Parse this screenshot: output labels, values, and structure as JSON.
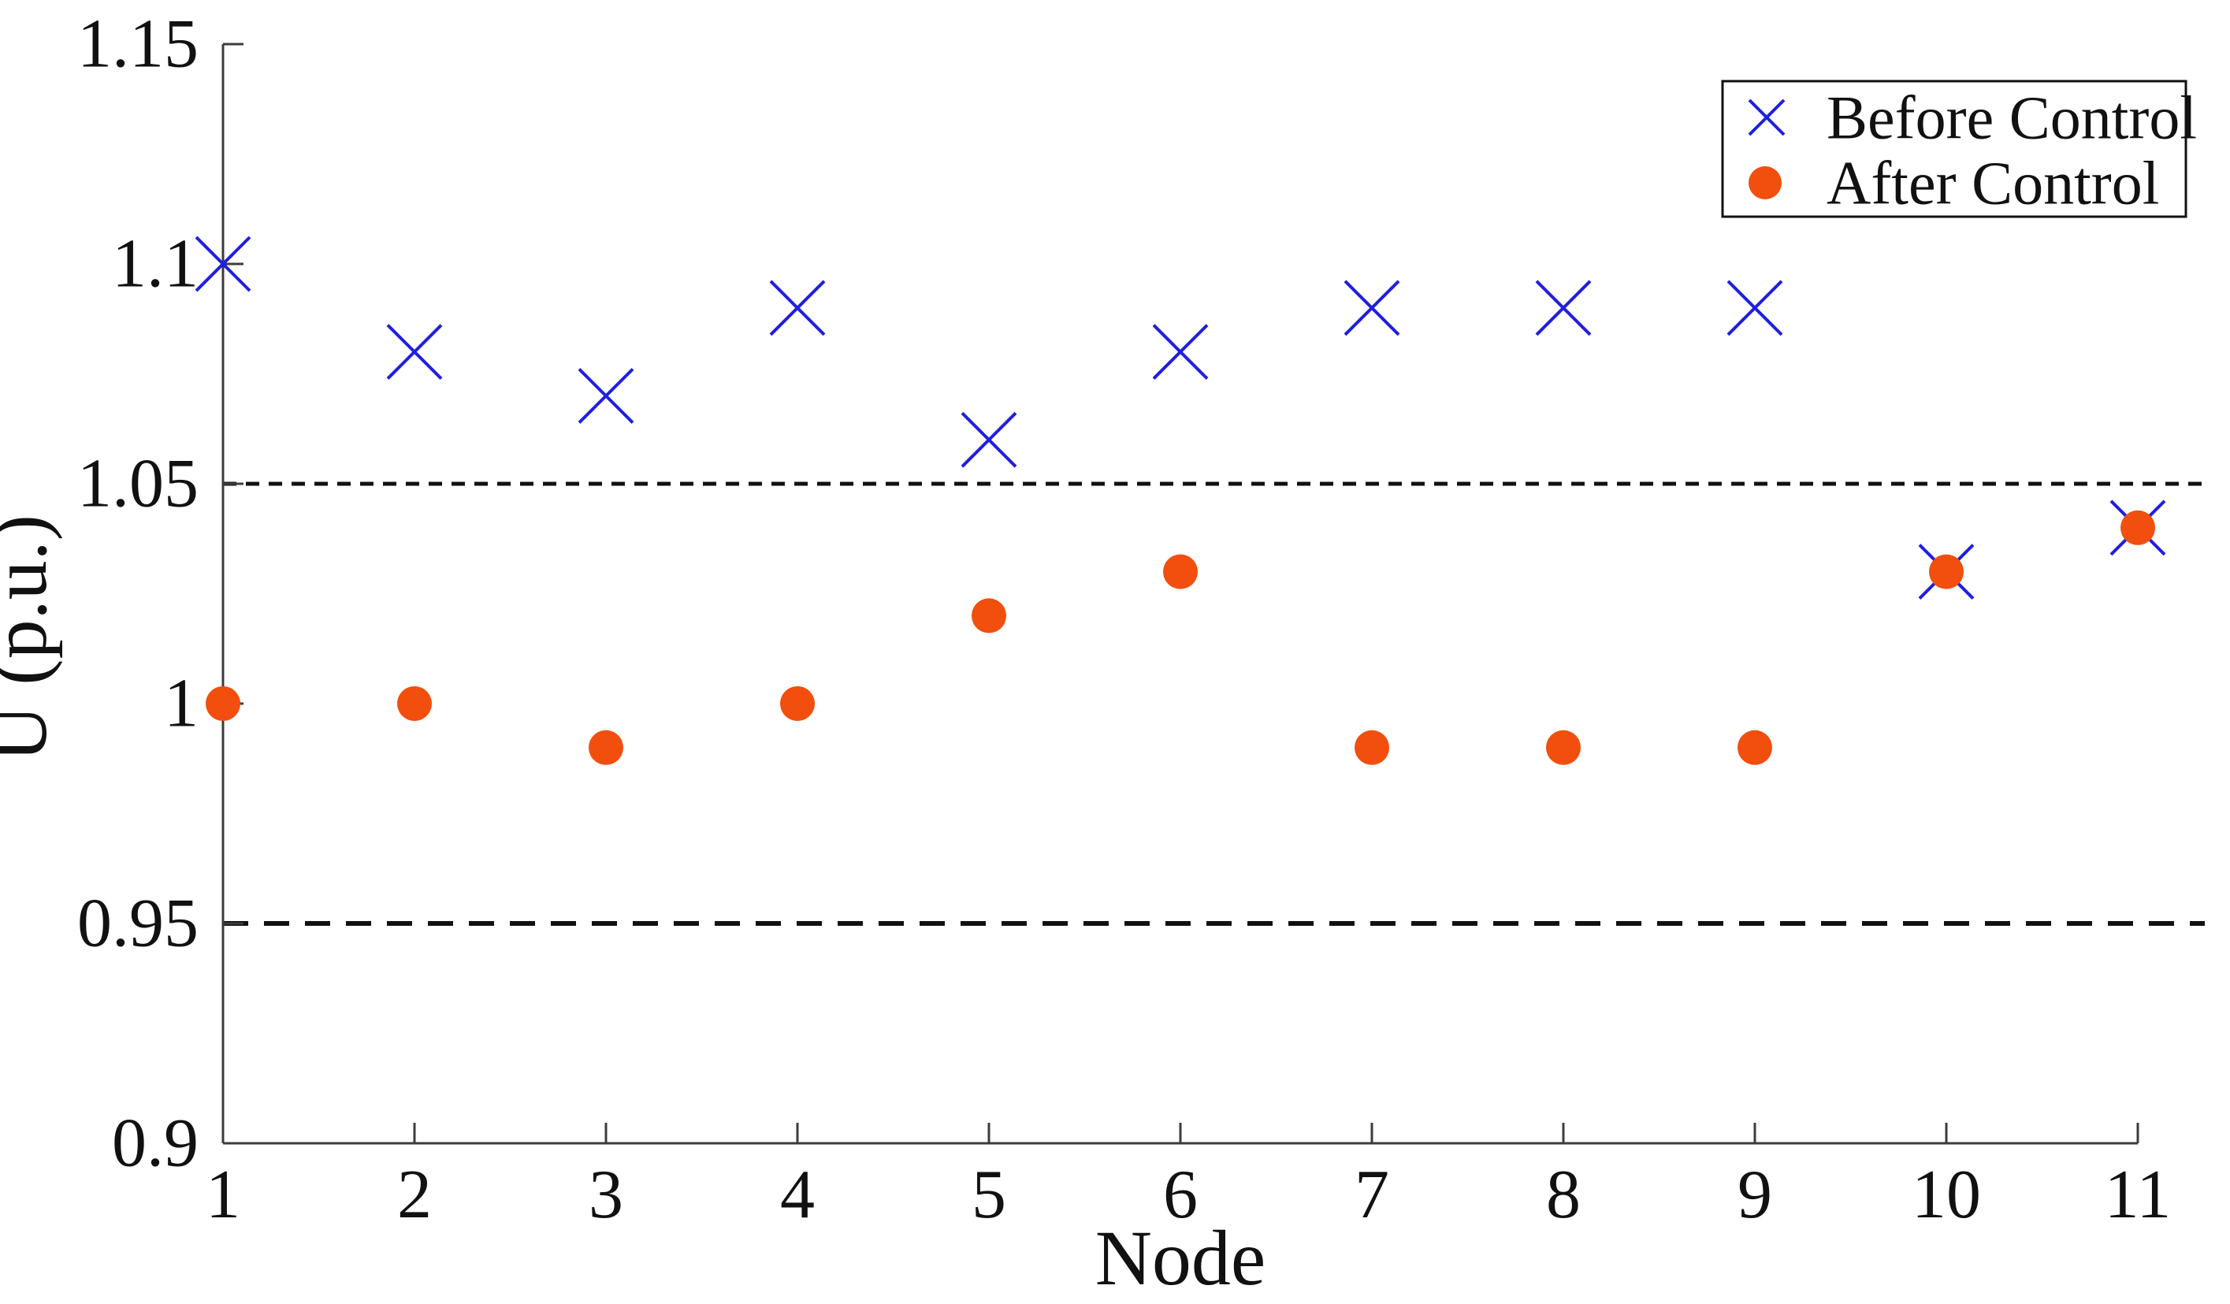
{
  "figure": {
    "background": "#ffffff",
    "axis_color": "#3c3c3c",
    "text_color": "#111111",
    "reference_line_color": "#111111"
  },
  "chart_data": {
    "type": "scatter",
    "title": "",
    "xlabel": "Node",
    "ylabel": "U (p.u.)",
    "grid": false,
    "legend_position": "top-right",
    "xlim": [
      1,
      11.35
    ],
    "ylim": [
      0.9,
      1.15
    ],
    "x": [
      1,
      2,
      3,
      4,
      5,
      6,
      7,
      8,
      9,
      10,
      11
    ],
    "x_tick_labels": [
      "1",
      "2",
      "3",
      "4",
      "5",
      "6",
      "7",
      "8",
      "9",
      "10",
      "11"
    ],
    "y_ticks": [
      0.9,
      0.95,
      1,
      1.05,
      1.1,
      1.15
    ],
    "y_tick_labels": [
      "0.9",
      "0.95",
      "1",
      "1.05",
      "1.1",
      "1.15"
    ],
    "series": [
      {
        "name": "Before Control",
        "marker": "x",
        "color": "#1F1FE0",
        "values": [
          1.1,
          1.08,
          1.07,
          1.09,
          1.06,
          1.08,
          1.09,
          1.09,
          1.09,
          1.03,
          1.04
        ]
      },
      {
        "name": "After Control",
        "marker": "circle",
        "color": "#F24E0E",
        "values": [
          1.0,
          1.0,
          0.99,
          1.0,
          1.02,
          1.03,
          0.99,
          0.99,
          0.99,
          1.03,
          1.04
        ]
      }
    ],
    "reference_lines": [
      {
        "y": 1.05,
        "style": "dashed-short",
        "color": "#111111"
      },
      {
        "y": 0.95,
        "style": "dashed-long",
        "color": "#111111"
      }
    ]
  }
}
